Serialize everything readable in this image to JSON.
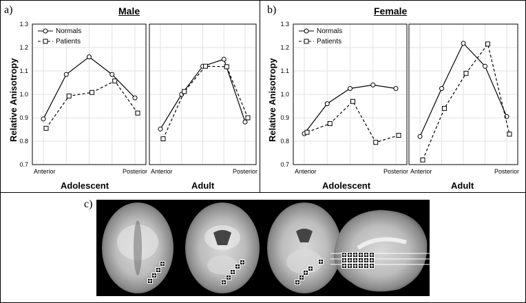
{
  "panel_a": {
    "label": "a)",
    "title": "Male"
  },
  "panel_b": {
    "label": "b)",
    "title": "Female"
  },
  "panel_c": {
    "label": "c)"
  },
  "ylabel": "Relative Anisotropy",
  "group_labels": [
    "Adolescent",
    "Adult"
  ],
  "x_tick_labels": [
    "Anterior",
    "Posterior"
  ],
  "legend": [
    "Normals",
    "Patients"
  ],
  "y_ticks": [
    "0.7",
    "0.8",
    "0.9",
    "1.0",
    "1.1",
    "1.2",
    "1.3"
  ],
  "chart_data": [
    {
      "type": "line",
      "title": "Male",
      "group": "Adolescent",
      "ylim": [
        0.7,
        1.3
      ],
      "ylabel": "Relative Anisotropy",
      "series": [
        {
          "name": "Normals",
          "values": [
            0.895,
            1.085,
            1.16,
            1.085,
            0.985
          ]
        },
        {
          "name": "Patients",
          "values": [
            0.855,
            0.993,
            1.008,
            1.057,
            0.92
          ]
        }
      ]
    },
    {
      "type": "line",
      "title": "Male",
      "group": "Adult",
      "ylim": [
        0.7,
        1.3
      ],
      "series": [
        {
          "name": "Normals",
          "values": [
            0.852,
            1.0,
            1.12,
            1.15,
            0.882
          ]
        },
        {
          "name": "Patients",
          "values": [
            0.81,
            1.012,
            1.12,
            1.118,
            0.9
          ]
        }
      ]
    },
    {
      "type": "line",
      "title": "Female",
      "group": "Adolescent",
      "ylim": [
        0.7,
        1.3
      ],
      "ylabel": "Relative Anisotropy",
      "series": [
        {
          "name": "Normals",
          "values": [
            0.832,
            0.96,
            1.025,
            1.04,
            1.025
          ]
        },
        {
          "name": "Patients",
          "values": [
            0.838,
            0.875,
            0.97,
            0.795,
            0.825
          ]
        }
      ]
    },
    {
      "type": "line",
      "title": "Female",
      "group": "Adult",
      "ylim": [
        0.7,
        1.3
      ],
      "series": [
        {
          "name": "Normals",
          "values": [
            0.82,
            1.025,
            1.218,
            1.12,
            0.905
          ]
        },
        {
          "name": "Patients",
          "values": [
            0.72,
            0.94,
            1.09,
            1.215,
            0.83
          ]
        }
      ]
    }
  ]
}
